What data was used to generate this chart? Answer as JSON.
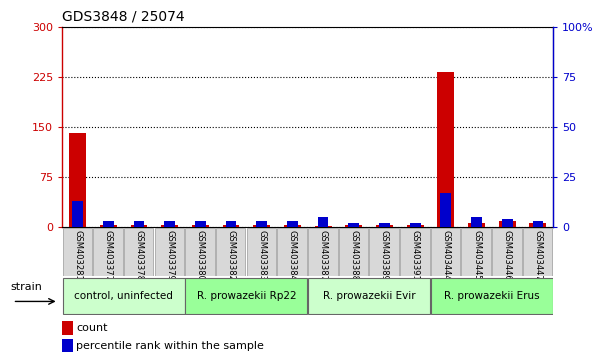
{
  "title": "GDS3848 / 25074",
  "samples": [
    "GSM403281",
    "GSM403377",
    "GSM403378",
    "GSM403379",
    "GSM403380",
    "GSM403382",
    "GSM403383",
    "GSM403384",
    "GSM403387",
    "GSM403388",
    "GSM403389",
    "GSM403391",
    "GSM403444",
    "GSM403445",
    "GSM403446",
    "GSM403447"
  ],
  "count_values": [
    140,
    2,
    2,
    2,
    2,
    2,
    2,
    2,
    1,
    2,
    2,
    2,
    232,
    5,
    8,
    5
  ],
  "percentile_values": [
    13,
    3,
    3,
    3,
    3,
    3,
    3,
    3,
    5,
    2,
    2,
    2,
    17,
    5,
    4,
    3
  ],
  "groups": [
    {
      "label": "control, uninfected",
      "start": 0,
      "end": 4,
      "color": "#ccffcc"
    },
    {
      "label": "R. prowazekii Rp22",
      "start": 4,
      "end": 8,
      "color": "#99ff99"
    },
    {
      "label": "R. prowazekii Evir",
      "start": 8,
      "end": 12,
      "color": "#ccffcc"
    },
    {
      "label": "R. prowazekii Erus",
      "start": 12,
      "end": 16,
      "color": "#99ff99"
    }
  ],
  "ylim_left": [
    0,
    300
  ],
  "ylim_right": [
    0,
    100
  ],
  "yticks_left": [
    0,
    75,
    150,
    225,
    300
  ],
  "yticks_right": [
    0,
    25,
    50,
    75,
    100
  ],
  "ytick_labels_left": [
    "0",
    "75",
    "150",
    "225",
    "300"
  ],
  "ytick_labels_right": [
    "0",
    "25",
    "50",
    "75",
    "100%"
  ],
  "bar_color_red": "#cc0000",
  "bar_color_blue": "#0000cc",
  "plot_bg": "#ffffff",
  "strain_label": "strain",
  "legend_count": "count",
  "legend_percentile": "percentile rank within the sample",
  "red_bar_width": 0.55,
  "blue_bar_width": 0.35
}
